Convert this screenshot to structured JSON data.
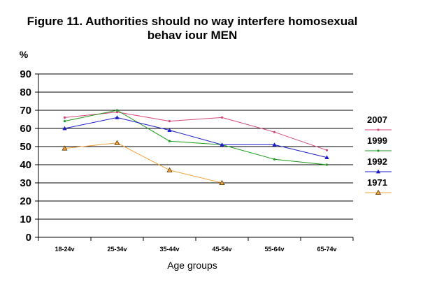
{
  "chart_data": {
    "type": "line",
    "title_lines": [
      "Figure 11. Authorities should no way interfere homosexual",
      "behav iour MEN"
    ],
    "ylabel": "%",
    "xlabel": "Age groups",
    "ylim": [
      0,
      90
    ],
    "yticks": [
      "0",
      "10",
      "20",
      "30",
      "40",
      "50",
      "60",
      "70",
      "80",
      "90"
    ],
    "grid": true,
    "legend_position": "right",
    "categories": [
      "18-24v",
      "25-34v",
      "35-44v",
      "45-54v",
      "55-64v",
      "65-74v"
    ],
    "series": [
      {
        "name": "2007",
        "color": "#d6457a",
        "marker": "dot",
        "values": [
          66,
          69,
          64,
          66,
          58,
          48
        ]
      },
      {
        "name": "1999",
        "color": "#1a9b1a",
        "marker": "dot",
        "values": [
          64,
          70,
          53,
          51,
          43,
          40
        ]
      },
      {
        "name": "1992",
        "color": "#1c1cc8",
        "marker": "triangle",
        "values": [
          60,
          66,
          59,
          51,
          51,
          44
        ]
      },
      {
        "name": "1971",
        "color": "#f2a23a",
        "marker": "triangle-open",
        "values": [
          49,
          52,
          37,
          30,
          null,
          null
        ]
      }
    ]
  }
}
